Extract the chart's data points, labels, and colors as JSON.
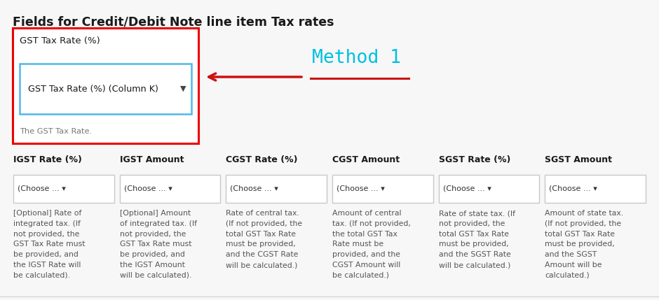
{
  "bg_color": "#f7f7f7",
  "title": "Fields for Credit/Debit Note line item Tax rates",
  "title_fontsize": 12.5,
  "title_color": "#1a1a1a",
  "method_label": "Method 1",
  "method_color": "#00c0e0",
  "method_fontsize": 19,
  "gst_label": "GST Tax Rate (%)",
  "gst_dropdown_text": "GST Tax Rate (%) (Column K)",
  "gst_helper": "The GST Tax Rate.",
  "gst_box_color": "#ee0000",
  "gst_dropdown_border": "#50b8e8",
  "arrow_color": "#cc1111",
  "columns": [
    {
      "label": "IGST Rate (%)",
      "desc": "[Optional] Rate of\nintegrated tax. (If\nnot provided, the\nGST Tax Rate must\nbe provided, and\nthe IGST Rate will\nbe calculated)."
    },
    {
      "label": "IGST Amount",
      "desc": "[Optional] Amount\nof integrated tax. (If\nnot provided, the\nGST Tax Rate must\nbe provided, and\nthe IGST Amount\nwill be calculated)."
    },
    {
      "label": "CGST Rate (%)",
      "desc": "Rate of central tax.\n(If not provided, the\ntotal GST Tax Rate\nmust be provided,\nand the CGST Rate\nwill be calculated.)"
    },
    {
      "label": "CGST Amount",
      "desc": "Amount of central\ntax. (If not provided,\nthe total GST Tax\nRate must be\nprovided, and the\nCGST Amount will\nbe calculated.)"
    },
    {
      "label": "SGST Rate (%)",
      "desc": "Rate of state tax. (If\nnot provided, the\ntotal GST Tax Rate\nmust be provided,\nand the SGST Rate\nwill be calculated.)"
    },
    {
      "label": "SGST Amount",
      "desc": "Amount of state tax.\n(If not provided, the\ntotal GST Tax Rate\nmust be provided,\nand the SGST\nAmount will be\ncalculated.)"
    }
  ],
  "dropdown_text": "(Choose ... ▾",
  "dropdown_bg": "#ffffff",
  "dropdown_border": "#c8c8c8",
  "col_label_fontsize": 9.0,
  "col_label_color": "#1a1a1a",
  "col_desc_fontsize": 7.8,
  "col_desc_color": "#555555"
}
